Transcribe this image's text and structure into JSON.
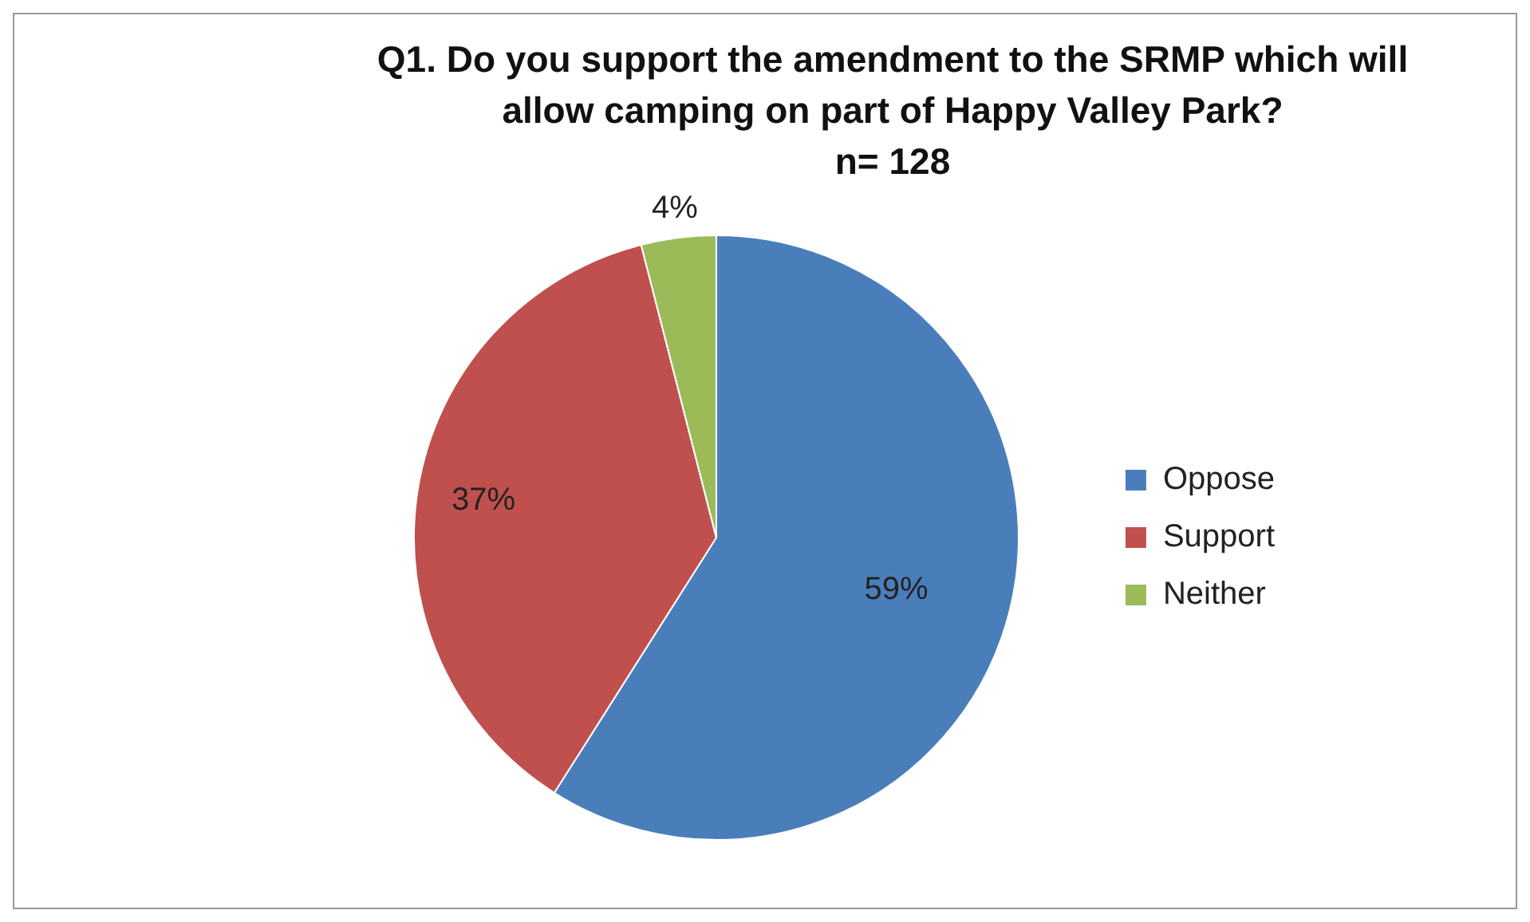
{
  "chart_data": {
    "type": "pie",
    "title": "Q1. Do you support the amendment to the SRMP which will allow camping on part of Happy Valley Park?",
    "subtitle": "n= 128",
    "categories": [
      "Oppose",
      "Support",
      "Neither"
    ],
    "values": [
      59,
      37,
      4
    ],
    "colors": [
      "#4a7ebb",
      "#c0504d",
      "#9bbb59"
    ],
    "value_labels": [
      "59%",
      "37%",
      "4%"
    ],
    "legend": "right"
  }
}
